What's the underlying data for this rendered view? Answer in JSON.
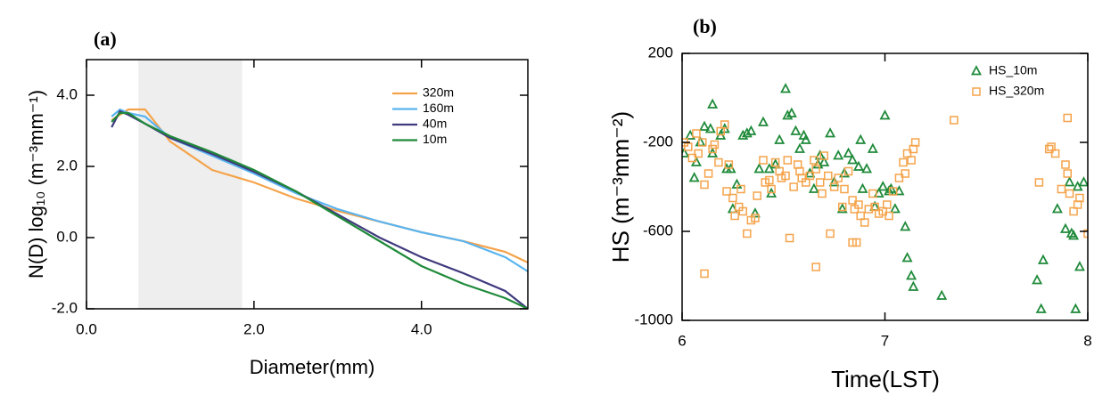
{
  "chart_data": [
    {
      "type": "line",
      "title": "(a)",
      "xlabel": "Diameter(mm)",
      "ylabel": "N(D) log₁₀ (m⁻³mm⁻¹)",
      "x": [
        0.3,
        0.4,
        0.5,
        0.7,
        1.0,
        1.5,
        2.0,
        2.5,
        3.0,
        3.5,
        4.0,
        4.5,
        5.0,
        5.27
      ],
      "series": [
        {
          "name": "320m",
          "color": "#f5a34a",
          "values": [
            3.3,
            3.45,
            3.6,
            3.6,
            2.7,
            1.9,
            1.55,
            1.1,
            0.75,
            0.45,
            0.15,
            -0.1,
            -0.4,
            -0.7
          ]
        },
        {
          "name": "160m",
          "color": "#5ab4ef",
          "values": [
            3.4,
            3.6,
            3.5,
            3.4,
            2.8,
            2.3,
            1.8,
            1.25,
            0.8,
            0.45,
            0.15,
            -0.1,
            -0.55,
            -0.95
          ]
        },
        {
          "name": "40m",
          "color": "#3f3a7d",
          "values": [
            3.1,
            3.55,
            3.45,
            3.2,
            2.8,
            2.35,
            1.85,
            1.3,
            0.65,
            0.0,
            -0.55,
            -1.0,
            -1.5,
            -2.0
          ]
        },
        {
          "name": "10m",
          "color": "#1f8a3a",
          "values": [
            3.25,
            3.5,
            3.5,
            3.2,
            2.85,
            2.4,
            1.9,
            1.3,
            0.6,
            -0.1,
            -0.8,
            -1.3,
            -1.7,
            -2.0
          ]
        }
      ],
      "shade": [
        0.62,
        1.86
      ],
      "shade_color": "#eeeeee",
      "xlim": [
        0,
        5.27
      ],
      "ylim": [
        -2,
        5
      ],
      "xticks": [
        {
          "value": 0,
          "label": "0.0"
        },
        {
          "value": 2,
          "label": "2.0"
        },
        {
          "value": 4,
          "label": "4.0"
        }
      ],
      "yticks": [
        {
          "value": -2,
          "label": "-2.0"
        },
        {
          "value": 0,
          "label": "0.0"
        },
        {
          "value": 2,
          "label": "2.0"
        },
        {
          "value": 4,
          "label": "4.0"
        }
      ]
    },
    {
      "type": "scatter",
      "title": "(b)",
      "xlabel": "Time(LST)",
      "ylabel": "HS (m⁻³mm⁻²)",
      "series": [
        {
          "name": "HS_10m",
          "color": "#1f8a3a",
          "marker": "triangle",
          "x": [
            6.01,
            6.04,
            6.06,
            6.07,
            6.09,
            6.11,
            6.14,
            6.15,
            6.15,
            6.19,
            6.21,
            6.22,
            6.24,
            6.25,
            6.27,
            6.3,
            6.32,
            6.34,
            6.36,
            6.38,
            6.4,
            6.43,
            6.44,
            6.46,
            6.48,
            6.51,
            6.52,
            6.54,
            6.56,
            6.58,
            6.6,
            6.61,
            6.63,
            6.65,
            6.67,
            6.68,
            6.7,
            6.73,
            6.75,
            6.77,
            6.79,
            6.8,
            6.82,
            6.84,
            6.87,
            6.88,
            6.89,
            6.91,
            6.94,
            6.95,
            6.97,
            6.99,
            7.0,
            7.02,
            7.03,
            7.05,
            7.07,
            7.1,
            7.11,
            7.13,
            7.14,
            7.28,
            7.75,
            7.77,
            7.78,
            7.85,
            7.89,
            7.92,
            7.93,
            7.94,
            7.96,
            7.91,
            7.98,
            7.95
          ],
          "values": [
            -250,
            -170,
            -360,
            -290,
            -200,
            -130,
            -140,
            -30,
            -250,
            -170,
            -140,
            -320,
            -320,
            -500,
            -390,
            -170,
            -160,
            -150,
            -520,
            -320,
            -110,
            -320,
            -430,
            -300,
            -190,
            40,
            -80,
            -70,
            -150,
            -230,
            -170,
            -190,
            -340,
            -410,
            -300,
            -260,
            -290,
            -160,
            -380,
            -260,
            -500,
            -340,
            -250,
            -280,
            -310,
            -190,
            -410,
            -320,
            -230,
            -490,
            -430,
            -400,
            -80,
            -420,
            -410,
            -500,
            -420,
            -580,
            -720,
            -800,
            -850,
            -890,
            -820,
            -950,
            -730,
            -500,
            -590,
            -610,
            -620,
            -950,
            -760,
            -380,
            -380,
            -400
          ]
        },
        {
          "name": "HS_320m",
          "color": "#f5a34a",
          "marker": "square",
          "x": [
            6.01,
            6.03,
            6.05,
            6.07,
            6.08,
            6.1,
            6.11,
            6.13,
            6.15,
            6.16,
            6.18,
            6.19,
            6.21,
            6.22,
            6.23,
            6.25,
            6.26,
            6.28,
            6.29,
            6.3,
            6.32,
            6.34,
            6.36,
            6.37,
            6.4,
            6.41,
            6.43,
            6.44,
            6.46,
            6.48,
            6.49,
            6.51,
            6.52,
            6.53,
            6.55,
            6.57,
            6.58,
            6.59,
            6.61,
            6.63,
            6.65,
            6.66,
            6.68,
            6.69,
            6.7,
            6.72,
            6.73,
            6.75,
            6.77,
            6.79,
            6.8,
            6.82,
            6.84,
            6.85,
            6.87,
            6.88,
            6.9,
            6.92,
            6.94,
            6.95,
            6.97,
            6.99,
            7.01,
            7.02,
            7.04,
            7.07,
            7.09,
            7.1,
            7.11,
            7.13,
            7.14,
            7.15,
            7.34,
            6.11,
            6.66,
            6.84,
            6.86,
            7.76,
            7.81,
            7.82,
            7.84,
            7.87,
            7.89,
            7.9,
            7.91,
            7.93,
            7.95,
            7.96,
            7.9,
            8.0
          ],
          "values": [
            -200,
            -220,
            -270,
            -160,
            -250,
            -200,
            -390,
            -340,
            -230,
            -210,
            -290,
            -150,
            -120,
            -420,
            -300,
            -450,
            -530,
            -490,
            -410,
            -510,
            -610,
            -550,
            -540,
            -440,
            -280,
            -380,
            -370,
            -410,
            -290,
            -330,
            -360,
            -350,
            -280,
            -630,
            -400,
            -300,
            -330,
            -360,
            -380,
            -350,
            -280,
            -320,
            -380,
            -430,
            -260,
            -350,
            -610,
            -400,
            -360,
            -490,
            -410,
            -330,
            -460,
            -500,
            -480,
            -530,
            -560,
            -500,
            -430,
            -490,
            -520,
            -510,
            -480,
            -530,
            -420,
            -360,
            -290,
            -340,
            -250,
            -280,
            -230,
            -200,
            -100,
            -790,
            -760,
            -650,
            -650,
            -380,
            -230,
            -220,
            -250,
            -410,
            -300,
            -340,
            -430,
            -510,
            -480,
            -450,
            -90,
            -610
          ]
        }
      ],
      "legend": "upper right",
      "xlim": [
        6,
        8
      ],
      "ylim": [
        -1000,
        200
      ],
      "xticks": [
        6,
        7,
        8
      ],
      "yticks": [
        -1000,
        -600,
        -200,
        200
      ]
    }
  ]
}
